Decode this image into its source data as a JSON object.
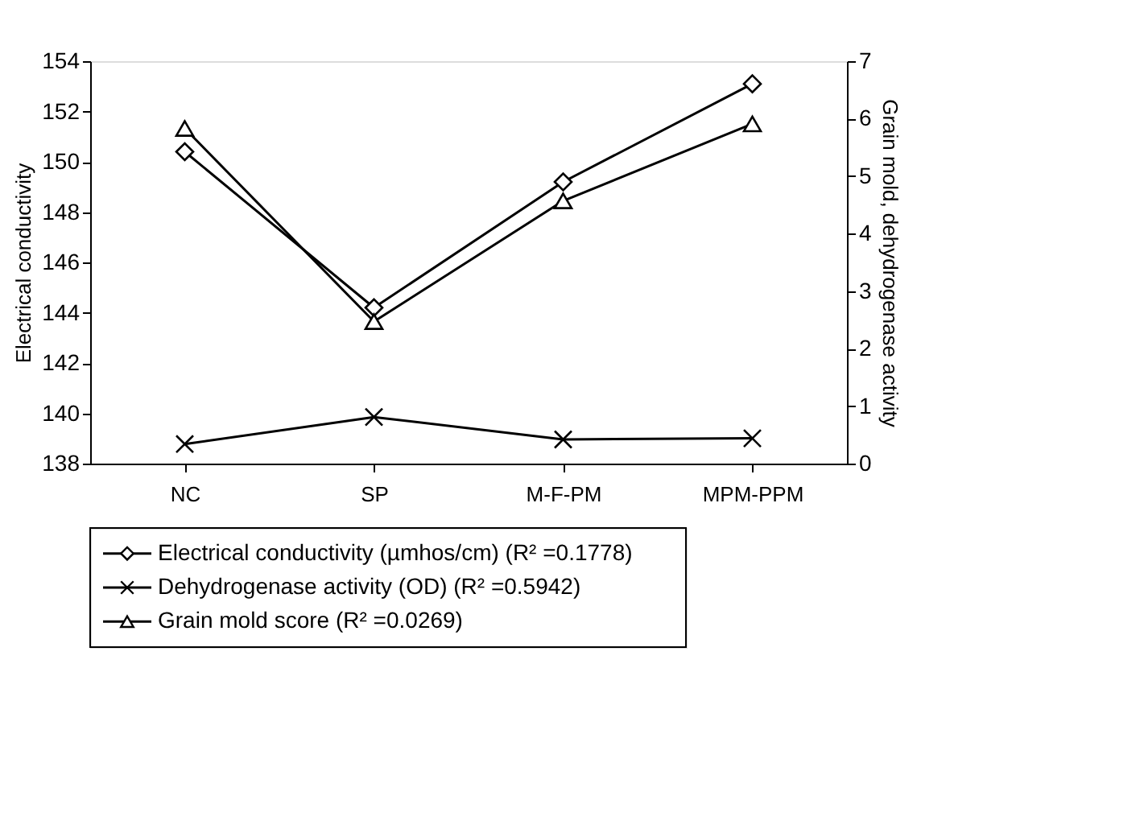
{
  "chart_data": {
    "type": "line",
    "ylabel": "Electrical conductivity",
    "y2label": "Grain mold, dehydrogenase activity",
    "categories": [
      "NC",
      "SP",
      "M-F-PM",
      "MPM-PPM"
    ],
    "series": [
      {
        "name": "Electrical conductivity (µmhos/cm) (R² =0.1778)",
        "color": "#000000",
        "marker": "diamond",
        "values": [
          150.4,
          144.2,
          149.2,
          153.1
        ]
      },
      {
        "name": "Dehydrogenase activity (OD) (R² =0.5942)",
        "color": "#000000",
        "marker": "cross",
        "axis": "y2",
        "values": [
          0.34,
          0.81,
          0.42,
          0.44
        ]
      },
      {
        "name": "Grain mold score  (R² =0.0269)",
        "color": "#000000",
        "marker": "triangle",
        "axis": "y2",
        "values": [
          5.83,
          2.47,
          4.57,
          5.91
        ]
      }
    ],
    "ylim": [
      138,
      154
    ],
    "yticks": [
      138,
      140,
      142,
      144,
      146,
      148,
      150,
      152,
      154
    ],
    "y2lim": [
      0,
      7
    ],
    "y2ticks": [
      0,
      1,
      2,
      3,
      4,
      5,
      6,
      7
    ],
    "grid": false,
    "legend": "bottom",
    "line_style": "solid"
  }
}
